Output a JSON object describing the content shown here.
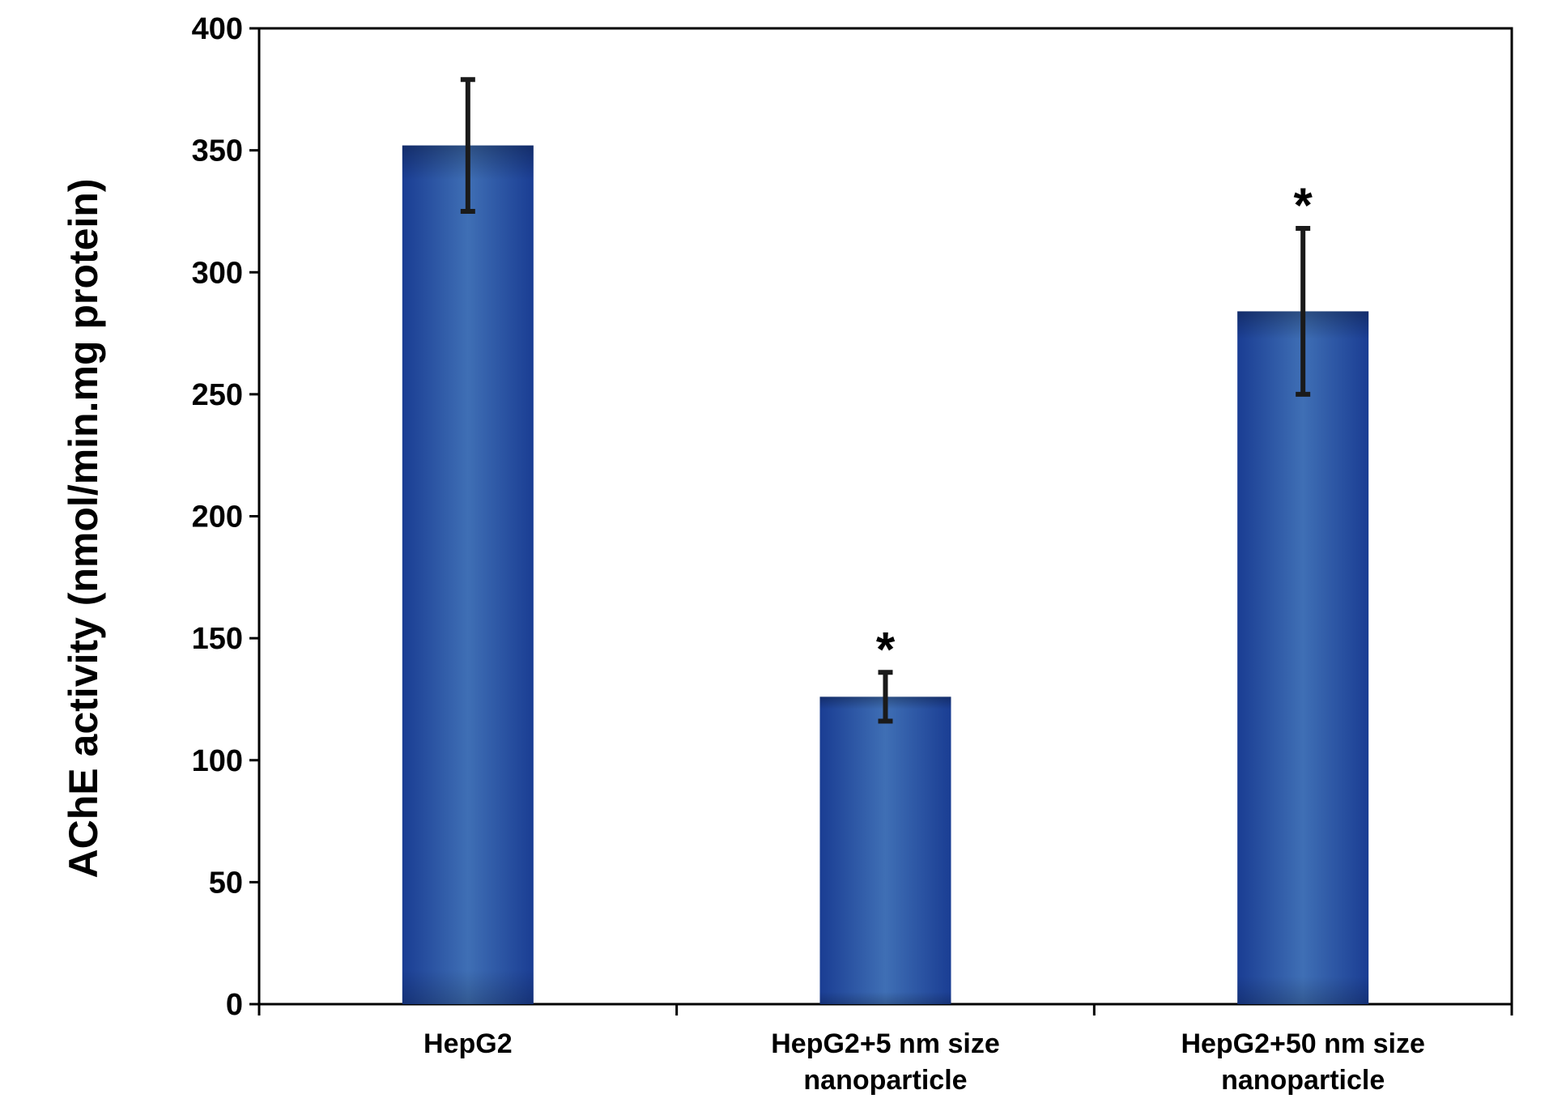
{
  "chart_data": {
    "type": "bar",
    "title": "",
    "xlabel": "",
    "ylabel": "AChE activity (nmol/min.mg protein)",
    "ylim": [
      0,
      400
    ],
    "yticks": [
      0,
      50,
      100,
      150,
      200,
      250,
      300,
      350,
      400
    ],
    "categories": [
      [
        "HepG2"
      ],
      [
        "HepG2+5 nm size",
        "nanoparticle"
      ],
      [
        "HepG2+50 nm size",
        "nanoparticle"
      ]
    ],
    "values": [
      352,
      126,
      284
    ],
    "errors": [
      27,
      10,
      34
    ],
    "significance_marks": [
      "",
      "*",
      "*"
    ],
    "grid": false,
    "legend": null,
    "colors": {
      "bar_center": "#3f6fb5",
      "bar_edge": "#1a3d93",
      "error_bar": "#1a1a1a",
      "axis": "#000000"
    }
  }
}
